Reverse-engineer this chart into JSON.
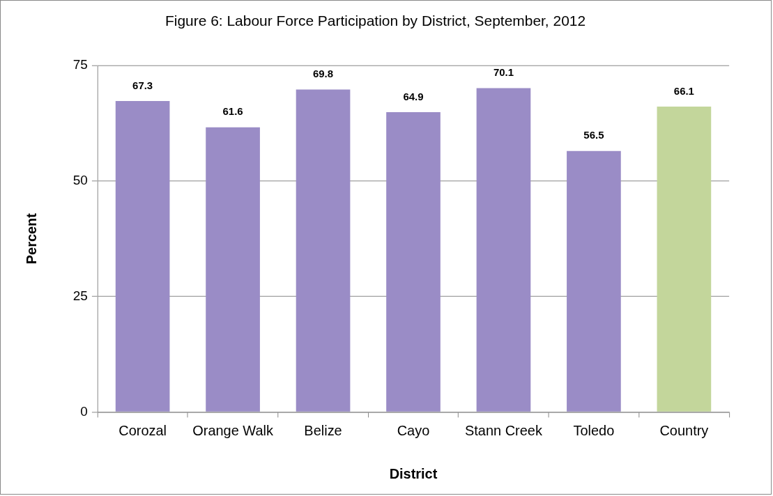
{
  "chart_data": {
    "type": "bar",
    "title": "Figure 6: Labour Force Participation by District, September, 2012",
    "xlabel": "District",
    "ylabel": "Percent",
    "categories": [
      "Corozal",
      "Orange Walk",
      "Belize",
      "Cayo",
      "Stann Creek",
      "Toledo",
      "Country"
    ],
    "values": [
      67.3,
      61.6,
      69.8,
      64.9,
      70.1,
      56.5,
      66.1
    ],
    "colors": [
      "#9a8cc6",
      "#9a8cc6",
      "#9a8cc6",
      "#9a8cc6",
      "#9a8cc6",
      "#9a8cc6",
      "#c3d69b"
    ],
    "ylim": [
      0,
      75
    ],
    "yticks": [
      0,
      25,
      50,
      75
    ],
    "grid": "y",
    "data_labels": true,
    "legend": false
  }
}
